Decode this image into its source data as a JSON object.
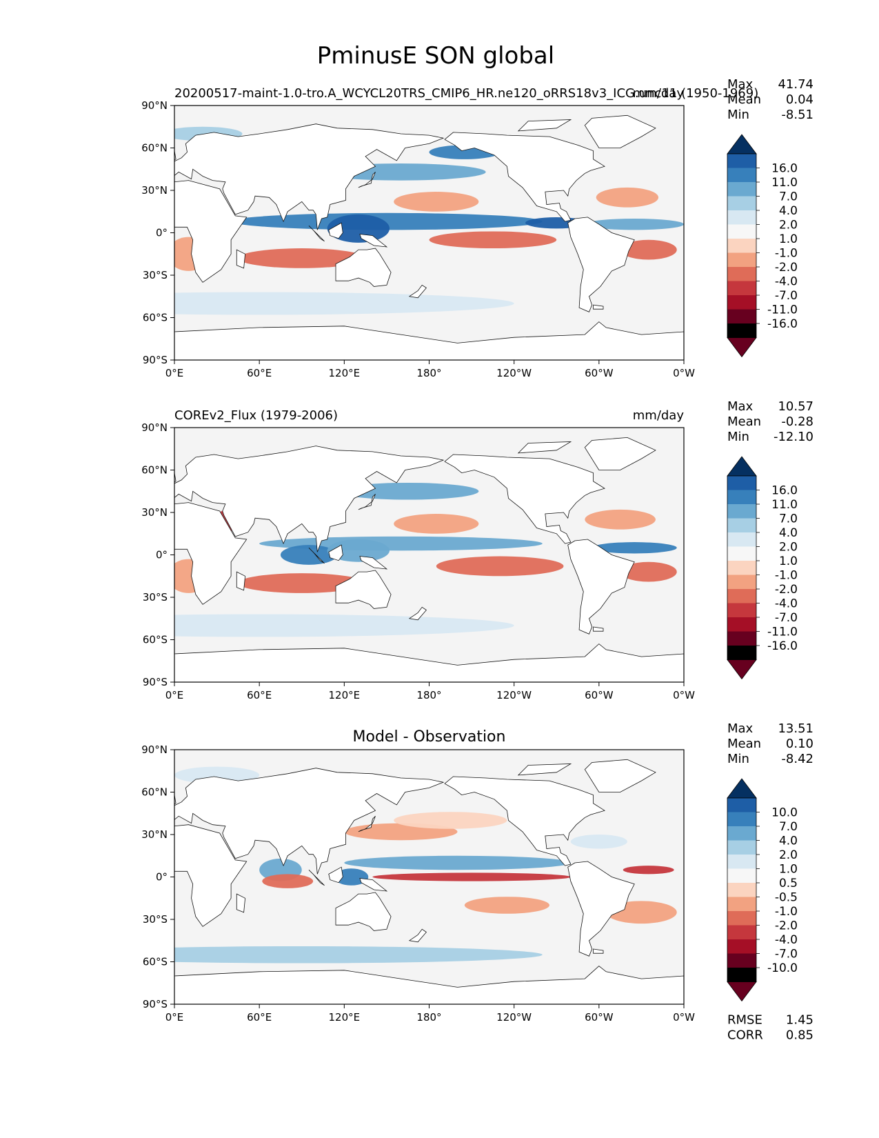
{
  "chart_data": {
    "type": "heatmap",
    "title": "PminusE SON global",
    "colors": {
      "land": "#ffffff",
      "ocean_background": "#f4f4f4",
      "coast": "#111111",
      "palette": [
        "#67001f",
        "#a50f26",
        "#c5373d",
        "#df6c58",
        "#f2a281",
        "#fbd4c0",
        "#f7f7f7",
        "#d8e8f2",
        "#a7cfe4",
        "#6aa9d0",
        "#3780bb",
        "#1e5ea6",
        "#053061"
      ]
    },
    "axes": {
      "lon_ticks": [
        "0°E",
        "60°E",
        "120°E",
        "180°",
        "120°W",
        "60°W",
        "0°W"
      ],
      "lat_ticks": [
        "90°N",
        "60°N",
        "30°N",
        "0°",
        "30°S",
        "60°S",
        "90°S"
      ],
      "lon_range": [
        0,
        360
      ],
      "lat_range": [
        -90,
        90
      ]
    },
    "panels": [
      {
        "left_title": "20200517-maint-1.0-tro.A_WCYCL20TRS_CMIP6_HR.ne120_oRRS18v3_ICG.unc11 (1950-1969)",
        "center_title": "",
        "units": "mm/day",
        "stats": [
          {
            "label": "Max",
            "value": "41.74"
          },
          {
            "label": "Mean",
            "value": "0.04"
          },
          {
            "label": "Min",
            "value": "-8.51"
          }
        ],
        "colorbar_levels": [
          "16.0",
          "11.0",
          "7.0",
          "4.0",
          "2.0",
          "1.0",
          "-1.0",
          "-2.0",
          "-4.0",
          "-7.0",
          "-11.0",
          "-16.0"
        ],
        "extra_stats": [],
        "fields": [
          {
            "lon": 150,
            "lat": 8,
            "rx": 110,
            "ry": 6,
            "v": 4
          },
          {
            "lon": 130,
            "lat": 3,
            "rx": 22,
            "ry": 10,
            "v": 5
          },
          {
            "lon": 270,
            "lat": 7,
            "rx": 22,
            "ry": 4,
            "v": 5
          },
          {
            "lon": 325,
            "lat": 6,
            "rx": 35,
            "ry": 4,
            "v": 3
          },
          {
            "lon": 160,
            "lat": 43,
            "rx": 60,
            "ry": 6,
            "v": 3
          },
          {
            "lon": 205,
            "lat": 57,
            "rx": 25,
            "ry": 5,
            "v": 4
          },
          {
            "lon": 60,
            "lat": -50,
            "rx": 180,
            "ry": 8,
            "v": 1
          },
          {
            "lon": 20,
            "lat": 70,
            "rx": 28,
            "ry": 5,
            "v": 2
          },
          {
            "lon": 25,
            "lat": 3,
            "rx": 14,
            "ry": 6,
            "v": 4
          },
          {
            "lon": 225,
            "lat": -5,
            "rx": 45,
            "ry": 6,
            "v": -3
          },
          {
            "lon": 90,
            "lat": -18,
            "rx": 45,
            "ry": 7,
            "v": -3
          },
          {
            "lon": 185,
            "lat": 22,
            "rx": 30,
            "ry": 7,
            "v": -2
          },
          {
            "lon": 335,
            "lat": -12,
            "rx": 20,
            "ry": 7,
            "v": -3
          },
          {
            "lon": 320,
            "lat": 25,
            "rx": 22,
            "ry": 7,
            "v": -2
          },
          {
            "lon": 10,
            "lat": -15,
            "rx": 15,
            "ry": 12,
            "v": -2
          }
        ]
      },
      {
        "left_title": "COREv2_Flux (1979-2006)",
        "center_title": "",
        "units": "mm/day",
        "stats": [
          {
            "label": "Max",
            "value": "10.57"
          },
          {
            "label": "Mean",
            "value": "-0.28"
          },
          {
            "label": "Min",
            "value": "-12.10"
          }
        ],
        "colorbar_levels": [
          "16.0",
          "11.0",
          "7.0",
          "4.0",
          "2.0",
          "1.0",
          "-1.0",
          "-2.0",
          "-4.0",
          "-7.0",
          "-11.0",
          "-16.0"
        ],
        "extra_stats": [],
        "fields": [
          {
            "lon": 160,
            "lat": 8,
            "rx": 100,
            "ry": 5,
            "v": 3
          },
          {
            "lon": 95,
            "lat": 0,
            "rx": 20,
            "ry": 7,
            "v": 4
          },
          {
            "lon": 130,
            "lat": 3,
            "rx": 22,
            "ry": 8,
            "v": 3
          },
          {
            "lon": 165,
            "lat": 45,
            "rx": 50,
            "ry": 6,
            "v": 3
          },
          {
            "lon": 325,
            "lat": 5,
            "rx": 30,
            "ry": 4,
            "v": 4
          },
          {
            "lon": 60,
            "lat": -50,
            "rx": 180,
            "ry": 8,
            "v": 1
          },
          {
            "lon": 230,
            "lat": -8,
            "rx": 45,
            "ry": 7,
            "v": -3
          },
          {
            "lon": 90,
            "lat": -20,
            "rx": 45,
            "ry": 7,
            "v": -3
          },
          {
            "lon": 185,
            "lat": 22,
            "rx": 30,
            "ry": 7,
            "v": -2
          },
          {
            "lon": 335,
            "lat": -12,
            "rx": 20,
            "ry": 7,
            "v": -3
          },
          {
            "lon": 40,
            "lat": 25,
            "rx": 10,
            "ry": 8,
            "v": -4
          },
          {
            "lon": 10,
            "lat": -15,
            "rx": 15,
            "ry": 12,
            "v": -2
          },
          {
            "lon": 315,
            "lat": 25,
            "rx": 25,
            "ry": 7,
            "v": -2
          }
        ]
      },
      {
        "left_title": "",
        "center_title": "Model - Observation",
        "units": "",
        "stats": [
          {
            "label": "Max",
            "value": "13.51"
          },
          {
            "label": "Mean",
            "value": "0.10"
          },
          {
            "label": "Min",
            "value": "-8.42"
          }
        ],
        "colorbar_levels": [
          "10.0",
          "7.0",
          "4.0",
          "2.0",
          "1.0",
          "0.5",
          "-0.5",
          "-1.0",
          "-2.0",
          "-4.0",
          "-7.0",
          "-10.0"
        ],
        "extra_stats": [
          {
            "label": "RMSE",
            "value": "1.45"
          },
          {
            "label": "CORR",
            "value": "0.85"
          }
        ],
        "fields": [
          {
            "lon": 200,
            "lat": 10,
            "rx": 80,
            "ry": 5,
            "v": 3
          },
          {
            "lon": 75,
            "lat": 5,
            "rx": 15,
            "ry": 8,
            "v": 3
          },
          {
            "lon": 125,
            "lat": 0,
            "rx": 12,
            "ry": 6,
            "v": 4
          },
          {
            "lon": 210,
            "lat": 0,
            "rx": 70,
            "ry": 3,
            "v": -4
          },
          {
            "lon": 80,
            "lat": -3,
            "rx": 18,
            "ry": 5,
            "v": -3
          },
          {
            "lon": 160,
            "lat": 32,
            "rx": 40,
            "ry": 6,
            "v": -2
          },
          {
            "lon": 195,
            "lat": 40,
            "rx": 40,
            "ry": 6,
            "v": -1
          },
          {
            "lon": 90,
            "lat": -55,
            "rx": 170,
            "ry": 6,
            "v": 2
          },
          {
            "lon": 30,
            "lat": 72,
            "rx": 30,
            "ry": 6,
            "v": 1
          },
          {
            "lon": 235,
            "lat": -20,
            "rx": 30,
            "ry": 6,
            "v": -2
          },
          {
            "lon": 330,
            "lat": -25,
            "rx": 25,
            "ry": 8,
            "v": -2
          },
          {
            "lon": 300,
            "lat": 25,
            "rx": 20,
            "ry": 5,
            "v": 1
          },
          {
            "lon": 335,
            "lat": 5,
            "rx": 18,
            "ry": 3,
            "v": -4
          }
        ]
      }
    ]
  }
}
